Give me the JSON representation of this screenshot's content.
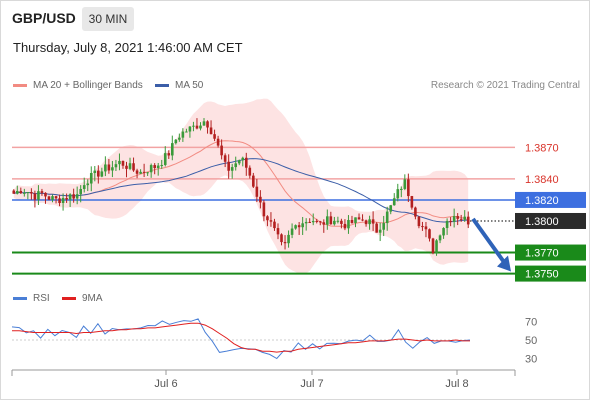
{
  "header": {
    "symbol": "GBP/USD",
    "timeframe": "30 MIN"
  },
  "datetime": "Thursday, July 8, 2021 1:46:00 AM CET",
  "legend": {
    "ma20": {
      "label": "MA 20 + Bollinger Bands",
      "color": "#f28b82"
    },
    "ma50": {
      "label": "MA 50",
      "color": "#3b5ea8"
    },
    "rsi": {
      "label": "RSI",
      "color": "#4a7fd6"
    },
    "ma9": {
      "label": "9MA",
      "color": "#e02020"
    }
  },
  "copyright": "Research © 2021 Trading Central",
  "chart_data": {
    "type": "candlestick",
    "x_ticks": [
      "Jul 6",
      "Jul 7",
      "Jul 8"
    ],
    "price_levels": [
      {
        "value": 1.387,
        "label": "1.3870",
        "kind": "resistance"
      },
      {
        "value": 1.384,
        "label": "1.3840",
        "kind": "resistance"
      },
      {
        "value": 1.382,
        "label": "1.3820",
        "kind": "pivot"
      },
      {
        "value": 1.38,
        "label": "1.3800",
        "kind": "last"
      },
      {
        "value": 1.377,
        "label": "1.3770",
        "kind": "support"
      },
      {
        "value": 1.375,
        "label": "1.3750",
        "kind": "support"
      }
    ],
    "price_ylim": [
      1.3742,
      1.3915
    ],
    "close_path": [
      1.3826,
      1.383,
      1.3828,
      1.3824,
      1.3826,
      1.3822,
      1.382,
      1.3822,
      1.3824,
      1.3825,
      1.3838,
      1.3842,
      1.3846,
      1.385,
      1.3852,
      1.3856,
      1.3852,
      1.3848,
      1.3846,
      1.385,
      1.3852,
      1.3858,
      1.3866,
      1.388,
      1.3885,
      1.3888,
      1.3892,
      1.3896,
      1.3884,
      1.3866,
      1.3848,
      1.3853,
      1.386,
      1.3848,
      1.383,
      1.381,
      1.38,
      1.3786,
      1.3772,
      1.379,
      1.3798,
      1.38,
      1.3802,
      1.3796,
      1.38,
      1.3802,
      1.3798,
      1.3796,
      1.38,
      1.3801,
      1.38,
      1.379,
      1.38,
      1.3812,
      1.3826,
      1.3838,
      1.3818,
      1.38,
      1.379,
      1.3772,
      1.379,
      1.38,
      1.3806,
      1.3803,
      1.38
    ],
    "rsi": {
      "ticks": [
        70,
        50,
        30
      ],
      "ylim": [
        20,
        80
      ],
      "rsi_values": [
        64,
        62,
        60,
        57,
        55,
        59,
        56,
        60,
        57,
        55,
        62,
        60,
        65,
        58,
        62,
        60,
        64,
        59,
        66,
        63,
        67,
        70,
        66,
        71,
        68,
        73,
        70,
        60,
        48,
        36,
        40,
        37,
        44,
        38,
        42,
        36,
        34,
        32,
        36,
        40,
        44,
        42,
        45,
        40,
        48,
        44,
        49,
        46,
        52,
        48,
        55,
        50,
        46,
        53,
        58,
        50,
        40,
        48,
        54,
        44,
        52,
        46,
        50,
        48,
        50
      ],
      "ma9_values": [
        60,
        60,
        59,
        58,
        58,
        58,
        58,
        58,
        58,
        57,
        58,
        58,
        59,
        60,
        60,
        61,
        61,
        62,
        62,
        63,
        63,
        64,
        65,
        66,
        67,
        68,
        68,
        66,
        62,
        57,
        52,
        46,
        42,
        40,
        40,
        38,
        38,
        37,
        38,
        38,
        40,
        41,
        42,
        43,
        44,
        45,
        46,
        47,
        47,
        48,
        49,
        49,
        49,
        50,
        51,
        51,
        50,
        49,
        50,
        49,
        49,
        49,
        50,
        49,
        49
      ]
    }
  }
}
